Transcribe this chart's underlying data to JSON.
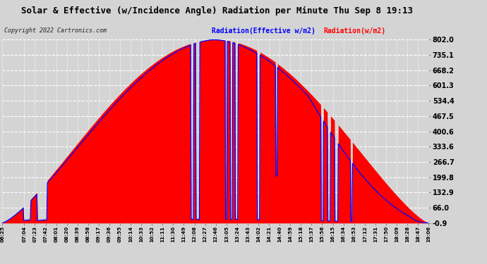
{
  "title": "Solar & Effective (w/Incidence Angle) Radiation per Minute Thu Sep 8 19:13",
  "copyright": "Copyright 2022 Cartronics.com",
  "legend_blue": "Radiation(Effective w/m2)",
  "legend_red": "Radiation(w/m2)",
  "ylim": [
    -0.9,
    802.0
  ],
  "yticks": [
    -0.9,
    66.0,
    132.9,
    199.8,
    266.7,
    333.6,
    400.6,
    467.5,
    534.4,
    601.3,
    668.2,
    735.1,
    802.0
  ],
  "bg_color": "#d4d4d4",
  "plot_bg_color": "#d4d4d4",
  "red_color": "#ff0000",
  "blue_color": "#0000ff",
  "grid_color": "#ffffff",
  "xtick_labels": [
    "06:25",
    "07:04",
    "07:23",
    "07:42",
    "08:01",
    "08:20",
    "08:39",
    "08:58",
    "09:17",
    "09:36",
    "09:55",
    "10:14",
    "10:33",
    "10:52",
    "11:11",
    "11:30",
    "11:49",
    "12:08",
    "12:27",
    "12:46",
    "13:05",
    "13:24",
    "13:43",
    "14:02",
    "14:21",
    "14:40",
    "14:59",
    "15:18",
    "15:37",
    "15:56",
    "16:15",
    "16:34",
    "16:53",
    "17:12",
    "17:31",
    "17:50",
    "18:09",
    "18:28",
    "18:47",
    "19:06"
  ]
}
